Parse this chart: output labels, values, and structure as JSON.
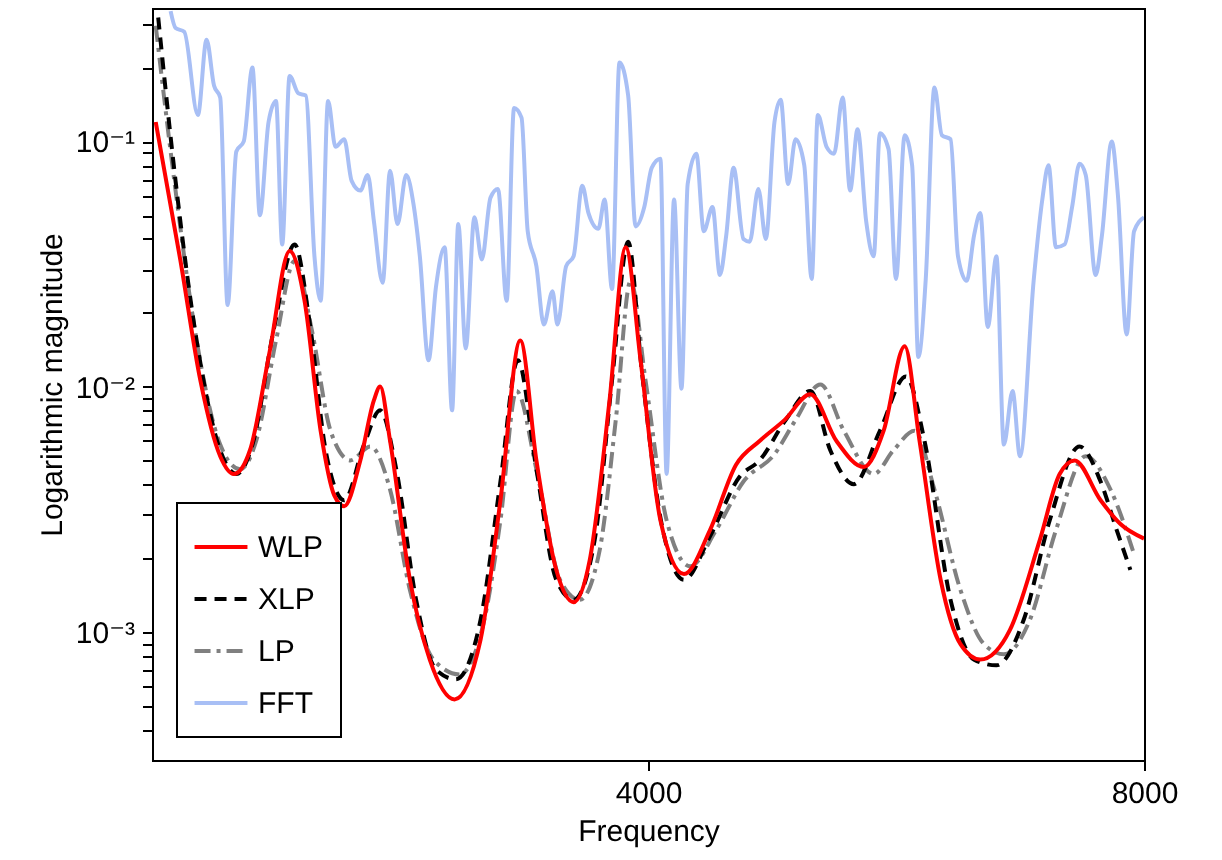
{
  "chart_data": {
    "type": "line",
    "xlabel": "Frequency",
    "ylabel": "Logarithmic magnitude",
    "xlim": [
      0,
      8000
    ],
    "xticks": [
      4000,
      8000
    ],
    "ylim": [
      0.0003,
      0.35
    ],
    "yticks": [
      {
        "value": 0.0004,
        "label": null
      },
      {
        "value": 0.0005,
        "label": null
      },
      {
        "value": 0.0006,
        "label": null
      },
      {
        "value": 0.0007,
        "label": null
      },
      {
        "value": 0.0008,
        "label": null
      },
      {
        "value": 0.0009,
        "label": null
      },
      {
        "value": 0.001,
        "label": "10⁻³"
      },
      {
        "value": 0.002,
        "label": null
      },
      {
        "value": 0.003,
        "label": null
      },
      {
        "value": 0.004,
        "label": null
      },
      {
        "value": 0.005,
        "label": null
      },
      {
        "value": 0.006,
        "label": null
      },
      {
        "value": 0.007,
        "label": null
      },
      {
        "value": 0.008,
        "label": null
      },
      {
        "value": 0.009,
        "label": null
      },
      {
        "value": 0.01,
        "label": "10⁻²"
      },
      {
        "value": 0.02,
        "label": null
      },
      {
        "value": 0.03,
        "label": null
      },
      {
        "value": 0.04,
        "label": null
      },
      {
        "value": 0.05,
        "label": null
      },
      {
        "value": 0.06,
        "label": null
      },
      {
        "value": 0.07,
        "label": null
      },
      {
        "value": 0.08,
        "label": null
      },
      {
        "value": 0.09,
        "label": null
      },
      {
        "value": 0.1,
        "label": "10⁻¹"
      },
      {
        "value": 0.2,
        "label": null
      },
      {
        "value": 0.3,
        "label": null
      }
    ],
    "log": "y",
    "legend": "bottom left",
    "series": [
      {
        "name": "WLP",
        "color": "#ff0000",
        "line_style": "solid",
        "x": [
          30,
          230,
          390,
          550,
          660,
          790,
          950,
          1110,
          1230,
          1360,
          1470,
          1550,
          1680,
          1790,
          1840,
          1920,
          2080,
          2240,
          2440,
          2650,
          2810,
          2970,
          3100,
          3260,
          3400,
          3530,
          3690,
          3820,
          3940,
          4100,
          4290,
          4500,
          4710,
          4900,
          5100,
          5310,
          5520,
          5740,
          5900,
          6070,
          6190,
          6360,
          6520,
          6680,
          6920,
          7160,
          7320,
          7440,
          7650,
          7810,
          8000
        ],
        "values": [
          0.12,
          0.0325,
          0.0106,
          0.0052,
          0.0044,
          0.0055,
          0.014,
          0.0357,
          0.0224,
          0.0066,
          0.0036,
          0.00325,
          0.005,
          0.0088,
          0.01,
          0.006,
          0.00163,
          0.00077,
          0.00053,
          0.00093,
          0.00344,
          0.0154,
          0.005,
          0.00179,
          0.00132,
          0.00196,
          0.0088,
          0.037,
          0.0128,
          0.00285,
          0.00172,
          0.0026,
          0.0048,
          0.006,
          0.0073,
          0.0093,
          0.006,
          0.0047,
          0.0066,
          0.0146,
          0.006,
          0.00163,
          0.00089,
          0.00077,
          0.00102,
          0.00237,
          0.0044,
          0.005,
          0.00344,
          0.00275,
          0.0024
        ]
      },
      {
        "name": "XLP",
        "color": "#000000",
        "line_style": "dashed",
        "x": [
          50,
          190,
          360,
          550,
          680,
          810,
          980,
          1150,
          1270,
          1400,
          1550,
          1710,
          1840,
          1970,
          2130,
          2290,
          2450,
          2650,
          2810,
          2950,
          3100,
          3260,
          3400,
          3570,
          3710,
          3840,
          3950,
          4110,
          4290,
          4500,
          4740,
          4900,
          5110,
          5310,
          5470,
          5660,
          5870,
          6080,
          6230,
          6440,
          6630,
          6810,
          7030,
          7240,
          7480,
          7650,
          7780,
          7890
        ],
        "values": [
          0.32,
          0.069,
          0.0154,
          0.0055,
          0.0044,
          0.0058,
          0.0169,
          0.038,
          0.0185,
          0.0055,
          0.00344,
          0.0058,
          0.008,
          0.0046,
          0.00135,
          0.0007,
          0.00064,
          0.00112,
          0.0041,
          0.0128,
          0.0046,
          0.00163,
          0.00135,
          0.00237,
          0.0106,
          0.039,
          0.0116,
          0.00275,
          0.00163,
          0.00245,
          0.0043,
          0.005,
          0.0073,
          0.0096,
          0.0055,
          0.004,
          0.0066,
          0.011,
          0.006,
          0.00135,
          0.00077,
          0.00073,
          0.00112,
          0.00285,
          0.0057,
          0.0041,
          0.0026,
          0.00179
        ]
      },
      {
        "name": "LP",
        "color": "#808080",
        "line_style": "dashdot",
        "x": [
          30,
          190,
          360,
          550,
          710,
          840,
          1000,
          1150,
          1290,
          1440,
          1600,
          1760,
          1920,
          2080,
          2270,
          2480,
          2680,
          2810,
          2940,
          3100,
          3290,
          3450,
          3610,
          3740,
          3860,
          3980,
          4150,
          4340,
          4550,
          4770,
          5020,
          5190,
          5390,
          5580,
          5820,
          5980,
          6150,
          6310,
          6520,
          6710,
          6870,
          7080,
          7290,
          7530,
          7730,
          7920
        ],
        "values": [
          0.296,
          0.063,
          0.0154,
          0.0058,
          0.0046,
          0.006,
          0.0154,
          0.0325,
          0.0169,
          0.0066,
          0.005,
          0.0057,
          0.0038,
          0.00148,
          0.00077,
          0.00067,
          0.00112,
          0.00285,
          0.0096,
          0.0046,
          0.00163,
          0.00135,
          0.00215,
          0.0073,
          0.027,
          0.0106,
          0.00285,
          0.00185,
          0.0026,
          0.0041,
          0.0053,
          0.0073,
          0.0102,
          0.0066,
          0.0044,
          0.0055,
          0.0066,
          0.0038,
          0.00148,
          0.00089,
          0.00081,
          0.00112,
          0.0026,
          0.0052,
          0.0038,
          0.00207
        ]
      },
      {
        "name": "FFT",
        "color": "#a8bff5",
        "line_style": "solid",
        "x": [
          150,
          190,
          260,
          370,
          440,
          500,
          550,
          610,
          680,
          740,
          810,
          870,
          940,
          1000,
          1050,
          1110,
          1180,
          1240,
          1310,
          1360,
          1420,
          1480,
          1550,
          1610,
          1680,
          1740,
          1790,
          1860,
          1920,
          1980,
          2050,
          2110,
          2160,
          2230,
          2290,
          2360,
          2420,
          2470,
          2530,
          2600,
          2660,
          2730,
          2790,
          2860,
          2920,
          2980,
          3030,
          3100,
          3160,
          3230,
          3270,
          3340,
          3400,
          3470,
          3520,
          3600,
          3650,
          3710,
          3770,
          3840,
          3900,
          3970,
          4030,
          4100,
          4150,
          4210,
          4270,
          4320,
          4390,
          4450,
          4520,
          4580,
          4630,
          4690,
          4770,
          4820,
          4890,
          4950,
          5020,
          5070,
          5130,
          5190,
          5260,
          5320,
          5370,
          5440,
          5500,
          5570,
          5630,
          5690,
          5760,
          5820,
          5870,
          5940,
          6000,
          6070,
          6130,
          6180,
          6240,
          6310,
          6370,
          6440,
          6500,
          6570,
          6630,
          6680,
          6740,
          6810,
          6870,
          6940,
          7000,
          7110,
          7180,
          7230,
          7290,
          7360,
          7420,
          7480,
          7530,
          7610,
          7660,
          7740,
          7790,
          7860,
          7920,
          8000
        ],
        "values": [
          0.34,
          0.29,
          0.28,
          0.128,
          0.26,
          0.169,
          0.151,
          0.0215,
          0.091,
          0.1,
          0.2,
          0.05,
          0.12,
          0.146,
          0.038,
          0.185,
          0.157,
          0.154,
          0.034,
          0.0224,
          0.146,
          0.095,
          0.102,
          0.069,
          0.063,
          0.073,
          0.047,
          0.0265,
          0.076,
          0.046,
          0.073,
          0.055,
          0.034,
          0.0128,
          0.0255,
          0.037,
          0.008,
          0.046,
          0.0143,
          0.049,
          0.033,
          0.059,
          0.064,
          0.0224,
          0.137,
          0.125,
          0.043,
          0.031,
          0.0179,
          0.0245,
          0.0179,
          0.031,
          0.034,
          0.066,
          0.051,
          0.044,
          0.058,
          0.025,
          0.21,
          0.154,
          0.045,
          0.054,
          0.078,
          0.085,
          0.0044,
          0.058,
          0.0098,
          0.067,
          0.089,
          0.043,
          0.054,
          0.0285,
          0.041,
          0.078,
          0.04,
          0.039,
          0.064,
          0.04,
          0.12,
          0.148,
          0.067,
          0.102,
          0.08,
          0.0275,
          0.128,
          0.095,
          0.089,
          0.151,
          0.063,
          0.112,
          0.047,
          0.034,
          0.108,
          0.093,
          0.0275,
          0.106,
          0.08,
          0.0132,
          0.0275,
          0.166,
          0.106,
          0.102,
          0.034,
          0.027,
          0.0415,
          0.051,
          0.0175,
          0.034,
          0.0058,
          0.0096,
          0.0052,
          0.027,
          0.058,
          0.08,
          0.037,
          0.038,
          0.054,
          0.081,
          0.073,
          0.0285,
          0.041,
          0.1,
          0.06,
          0.0163,
          0.043,
          0.049
        ]
      }
    ]
  }
}
